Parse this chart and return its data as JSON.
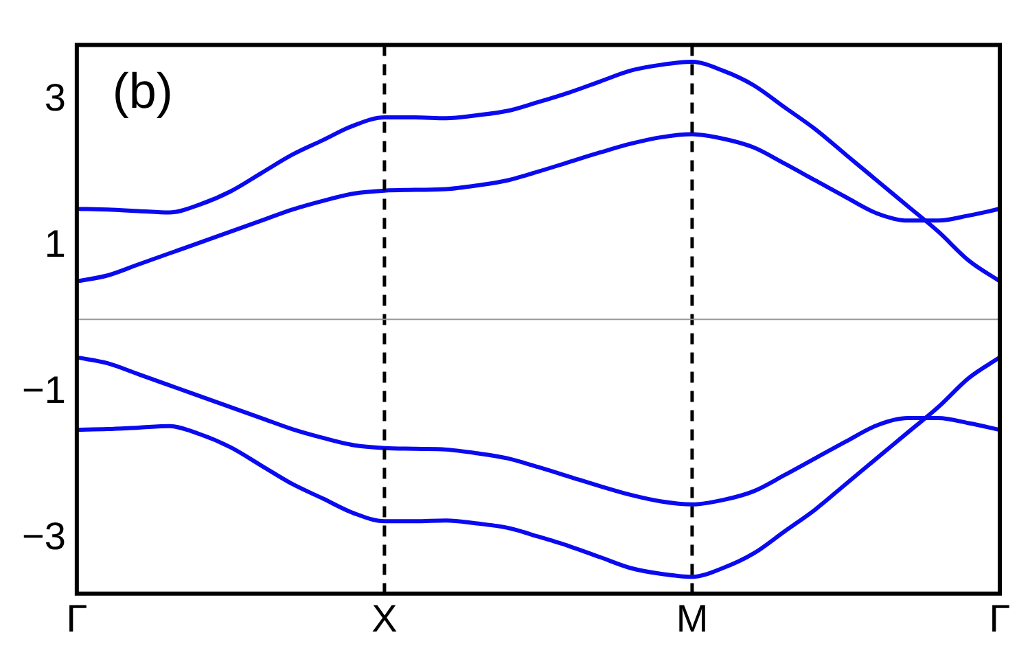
{
  "chart_data": {
    "type": "line",
    "annotations": [
      "(b)"
    ],
    "categories": [
      "Γ",
      null,
      null,
      null,
      null,
      null,
      null,
      null,
      null,
      null,
      "X",
      null,
      null,
      null,
      null,
      null,
      null,
      null,
      null,
      null,
      "M",
      null,
      null,
      null,
      null,
      null,
      null,
      null,
      null,
      null,
      "Γ"
    ],
    "series": [
      {
        "color": "#0a0af0",
        "values": [
          1.51,
          1.5,
          1.48,
          1.46,
          1.57,
          1.75,
          2.0,
          2.25,
          2.45,
          2.65,
          2.76,
          2.76,
          2.75,
          2.79,
          2.85,
          2.97,
          3.1,
          3.25,
          3.4,
          3.48,
          3.52,
          3.4,
          3.2,
          2.9,
          2.6,
          2.25,
          1.9,
          1.55,
          1.2,
          0.8,
          0.52
        ]
      },
      {
        "color": "#0a0af0",
        "values": [
          0.52,
          0.6,
          0.75,
          0.9,
          1.05,
          1.2,
          1.35,
          1.5,
          1.62,
          1.72,
          1.76,
          1.77,
          1.78,
          1.83,
          1.9,
          2.02,
          2.15,
          2.28,
          2.4,
          2.49,
          2.53,
          2.47,
          2.35,
          2.13,
          1.9,
          1.67,
          1.45,
          1.35,
          1.35,
          1.42,
          1.51
        ]
      },
      {
        "color": "#0a0af0",
        "values": [
          -0.52,
          -0.6,
          -0.75,
          -0.9,
          -1.05,
          -1.2,
          -1.35,
          -1.5,
          -1.62,
          -1.72,
          -1.76,
          -1.77,
          -1.78,
          -1.83,
          -1.9,
          -2.02,
          -2.15,
          -2.28,
          -2.4,
          -2.49,
          -2.53,
          -2.47,
          -2.35,
          -2.13,
          -1.9,
          -1.67,
          -1.45,
          -1.35,
          -1.35,
          -1.42,
          -1.51
        ]
      },
      {
        "color": "#0a0af0",
        "values": [
          -1.51,
          -1.5,
          -1.48,
          -1.46,
          -1.57,
          -1.75,
          -2.0,
          -2.25,
          -2.45,
          -2.65,
          -2.76,
          -2.76,
          -2.75,
          -2.79,
          -2.85,
          -2.97,
          -3.1,
          -3.25,
          -3.4,
          -3.48,
          -3.52,
          -3.4,
          -3.2,
          -2.9,
          -2.6,
          -2.25,
          -1.9,
          -1.55,
          -1.2,
          -0.8,
          -0.52
        ]
      }
    ],
    "ylim": [
      -3.75,
      3.75
    ],
    "yticks": [
      -3,
      -1,
      1,
      3
    ],
    "ref_lines": [
      {
        "axis": "x",
        "value": "X",
        "color": "#000000",
        "line_style": "dashed"
      },
      {
        "axis": "x",
        "value": "M",
        "color": "#000000",
        "line_style": "dashed"
      },
      {
        "axis": "y",
        "value": 0,
        "color": "#999999",
        "line_style": "solid"
      }
    ],
    "grid": false,
    "legend": false,
    "marker": "none",
    "line_style": "solid"
  }
}
